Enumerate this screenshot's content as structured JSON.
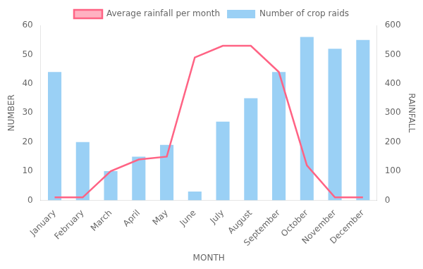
{
  "chart_data": {
    "type": "bar",
    "categories": [
      "January",
      "February",
      "March",
      "April",
      "May",
      "June",
      "July",
      "August",
      "September",
      "October",
      "November",
      "December"
    ],
    "series": [
      {
        "name": "Number of crop raids",
        "type": "bar",
        "values": [
          44,
          20,
          10,
          15,
          19,
          3,
          27,
          35,
          44,
          56,
          52,
          55
        ]
      },
      {
        "name": "Average rainfall per month",
        "type": "line",
        "axis": "y2",
        "marker": "none",
        "values": [
          10,
          10,
          100,
          140,
          150,
          490,
          530,
          530,
          440,
          120,
          10,
          10
        ]
      }
    ],
    "xlabel": "MONTH",
    "ylabel": "NUMBER",
    "y2label": "RAINFALL",
    "ylim": [
      0,
      60
    ],
    "yticks": [
      0,
      10,
      20,
      30,
      40,
      50,
      60
    ],
    "y2lim": [
      0,
      600
    ],
    "y2ticks": [
      0,
      100,
      200,
      300,
      400,
      500,
      600
    ],
    "grid": false,
    "legend": "top"
  }
}
